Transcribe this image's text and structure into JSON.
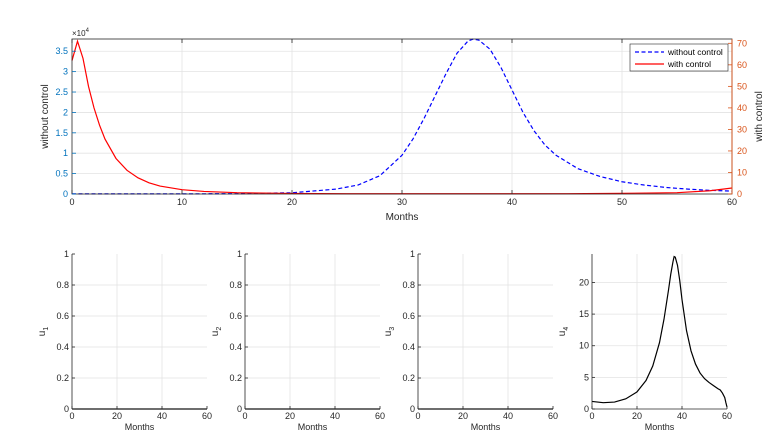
{
  "colors": {
    "left_axis": "#0072BD",
    "right_axis": "#D95319",
    "without_control": "#0000FF",
    "with_control": "#FF0000",
    "control": "#000000",
    "grid": "#E3E3E3"
  },
  "chart_data": [
    {
      "type": "line",
      "xlabel": "Months",
      "ylabel_left": "without control",
      "ylabel_right": "with control",
      "xlim": [
        0,
        60
      ],
      "xticks": [
        "0",
        "10",
        "20",
        "30",
        "40",
        "50",
        "60"
      ],
      "ylim_left": [
        0,
        3.8
      ],
      "yticks_left": [
        "0",
        "0.5",
        "1",
        "1.5",
        "2",
        "2.5",
        "3",
        "3.5"
      ],
      "exponent_left": "×10",
      "exponent_left_power": "4",
      "ylim_right": [
        0,
        72
      ],
      "yticks_right": [
        "0",
        "10",
        "20",
        "30",
        "40",
        "50",
        "60",
        "70"
      ],
      "grid": true,
      "legend_position": "top-right",
      "series": [
        {
          "name": "without control",
          "axis": "left",
          "style": "dashed",
          "x": [
            0,
            10,
            15,
            20,
            24,
            26,
            28,
            30,
            31,
            32,
            33,
            34,
            35,
            36,
            36.5,
            37,
            38,
            39,
            40,
            41,
            42,
            43,
            44,
            46,
            48,
            50,
            52,
            54,
            56,
            58,
            60
          ],
          "y": [
            0.004,
            0.003,
            0.008,
            0.03,
            0.12,
            0.22,
            0.45,
            0.95,
            1.35,
            1.85,
            2.4,
            2.95,
            3.45,
            3.75,
            3.8,
            3.77,
            3.55,
            3.1,
            2.55,
            2.0,
            1.55,
            1.2,
            0.95,
            0.62,
            0.43,
            0.3,
            0.22,
            0.16,
            0.12,
            0.09,
            0.07
          ]
        },
        {
          "name": "with control",
          "axis": "right",
          "style": "solid",
          "x": [
            0,
            0.5,
            1,
            1.5,
            2,
            2.5,
            3,
            4,
            5,
            6,
            7,
            8,
            10,
            12,
            15,
            20,
            25,
            30,
            35,
            40,
            45,
            50,
            55,
            58,
            60
          ],
          "y": [
            62,
            71,
            63,
            50,
            40,
            32,
            25.5,
            16.5,
            11,
            7.5,
            5.2,
            3.7,
            2,
            1.2,
            0.6,
            0.25,
            0.12,
            0.1,
            0.1,
            0.1,
            0.15,
            0.3,
            0.6,
            1.5,
            2.8
          ]
        }
      ]
    },
    {
      "type": "line",
      "xlabel": "Months",
      "ylabel": "u",
      "ylabel_sub": "1",
      "xlim": [
        0,
        60
      ],
      "xticks": [
        "0",
        "20",
        "40",
        "60"
      ],
      "ylim": [
        0,
        1
      ],
      "yticks": [
        "0",
        "0.2",
        "0.4",
        "0.6",
        "0.8",
        "1"
      ],
      "grid": true,
      "series": [
        {
          "x": [
            0,
            60
          ],
          "y": [
            0,
            0
          ]
        }
      ]
    },
    {
      "type": "line",
      "xlabel": "Months",
      "ylabel": "u",
      "ylabel_sub": "2",
      "xlim": [
        0,
        60
      ],
      "xticks": [
        "0",
        "20",
        "40",
        "60"
      ],
      "ylim": [
        0,
        1
      ],
      "yticks": [
        "0",
        "0.2",
        "0.4",
        "0.6",
        "0.8",
        "1"
      ],
      "grid": true,
      "series": [
        {
          "x": [
            0,
            60
          ],
          "y": [
            0,
            0
          ]
        }
      ]
    },
    {
      "type": "line",
      "xlabel": "Months",
      "ylabel": "u",
      "ylabel_sub": "3",
      "xlim": [
        0,
        60
      ],
      "xticks": [
        "0",
        "20",
        "40",
        "60"
      ],
      "ylim": [
        0,
        1
      ],
      "yticks": [
        "0",
        "0.2",
        "0.4",
        "0.6",
        "0.8",
        "1"
      ],
      "grid": true,
      "series": [
        {
          "x": [
            0,
            60
          ],
          "y": [
            0,
            0
          ]
        }
      ]
    },
    {
      "type": "line",
      "xlabel": "Months",
      "ylabel": "u",
      "ylabel_sub": "4",
      "xlim": [
        0,
        60
      ],
      "xticks": [
        "0",
        "20",
        "40",
        "60"
      ],
      "ylim": [
        0,
        24.5
      ],
      "ytick_values": [
        0,
        5,
        10,
        15,
        20
      ],
      "yticks": [
        "0",
        "5",
        "10",
        "15",
        "20"
      ],
      "grid": true,
      "series": [
        {
          "x": [
            0,
            5,
            10,
            15,
            20,
            24,
            27,
            30,
            32,
            34,
            35,
            36,
            36.5,
            37,
            38,
            39,
            40,
            42,
            44,
            46,
            48,
            50,
            52,
            54,
            56,
            57,
            58,
            59,
            59.5,
            60
          ],
          "y": [
            1.2,
            1.0,
            1.1,
            1.6,
            2.7,
            4.5,
            6.8,
            10.5,
            14.2,
            18.8,
            21.3,
            23.3,
            24.1,
            24.0,
            22.7,
            20.3,
            17.3,
            12.4,
            9.2,
            7.1,
            5.7,
            4.8,
            4.2,
            3.7,
            3.2,
            3.0,
            2.5,
            1.8,
            1.0,
            0.3
          ]
        }
      ]
    }
  ]
}
